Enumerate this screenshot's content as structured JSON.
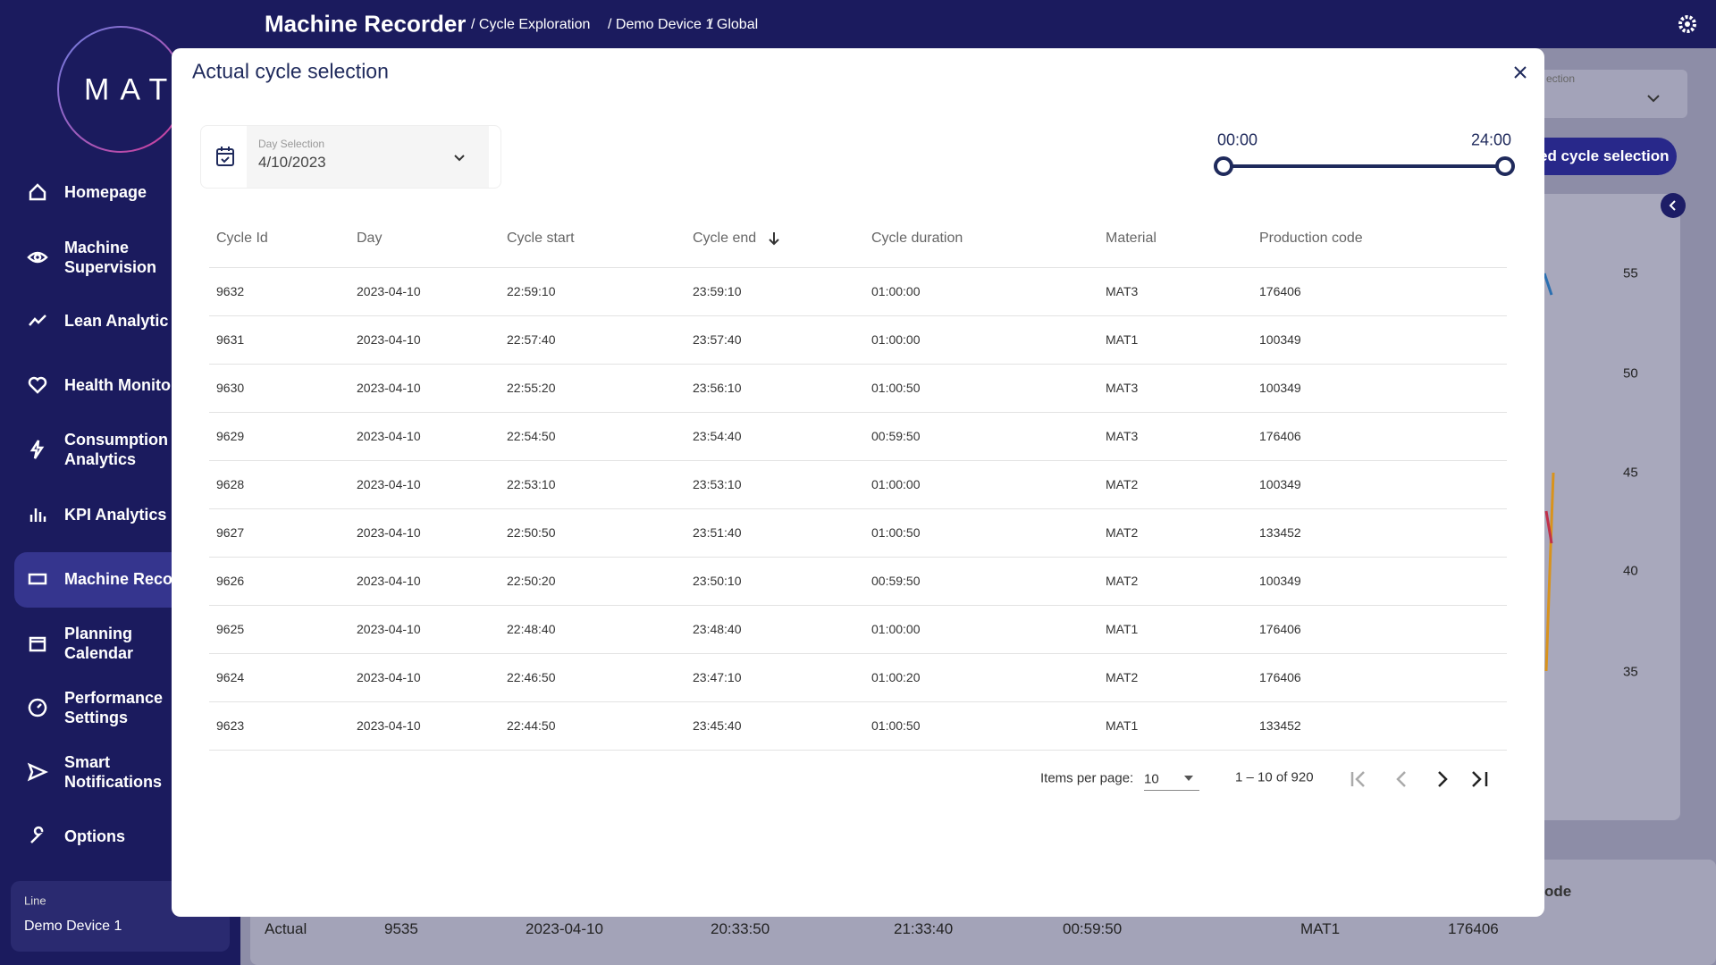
{
  "header": {
    "title": "Machine Recorder",
    "breadcrumbs": [
      "/ Cycle Exploration",
      "/ Demo Device 1",
      "/ Global"
    ]
  },
  "sidebar": {
    "logo": "MAT",
    "nav": [
      "Homepage",
      "Machine Supervision",
      "Lean Analytic",
      "Health Monito",
      "Consumption Analytics",
      "KPI Analytics",
      "Machine Reco",
      "Planning Calendar",
      "Performance Settings",
      "Smart Notifications",
      "Options"
    ],
    "line_label": "Line",
    "line_value": "Demo Device 1"
  },
  "background": {
    "select_label": "ection",
    "button": "ed cycle selection",
    "axis": [
      "55",
      "50",
      "45",
      "40",
      "35"
    ],
    "table_header": "ode",
    "row": [
      "Actual",
      "9535",
      "2023-04-10",
      "20:33:50",
      "21:33:40",
      "00:59:50",
      "MAT1",
      "176406"
    ]
  },
  "modal": {
    "title": "Actual cycle selection",
    "day_label": "Day Selection",
    "day_value": "4/10/2023",
    "slider": {
      "start": "00:00",
      "end": "24:00"
    },
    "table": {
      "columns": [
        "Cycle Id",
        "Day",
        "Cycle start",
        "Cycle end",
        "Cycle duration",
        "Material",
        "Production code"
      ],
      "rows": [
        [
          "9632",
          "2023-04-10",
          "22:59:10",
          "23:59:10",
          "01:00:00",
          "MAT3",
          "176406"
        ],
        [
          "9631",
          "2023-04-10",
          "22:57:40",
          "23:57:40",
          "01:00:00",
          "MAT1",
          "100349"
        ],
        [
          "9630",
          "2023-04-10",
          "22:55:20",
          "23:56:10",
          "01:00:50",
          "MAT3",
          "100349"
        ],
        [
          "9629",
          "2023-04-10",
          "22:54:50",
          "23:54:40",
          "00:59:50",
          "MAT3",
          "176406"
        ],
        [
          "9628",
          "2023-04-10",
          "22:53:10",
          "23:53:10",
          "01:00:00",
          "MAT2",
          "100349"
        ],
        [
          "9627",
          "2023-04-10",
          "22:50:50",
          "23:51:40",
          "01:00:50",
          "MAT2",
          "133452"
        ],
        [
          "9626",
          "2023-04-10",
          "22:50:20",
          "23:50:10",
          "00:59:50",
          "MAT2",
          "100349"
        ],
        [
          "9625",
          "2023-04-10",
          "22:48:40",
          "23:48:40",
          "01:00:00",
          "MAT1",
          "176406"
        ],
        [
          "9624",
          "2023-04-10",
          "22:46:50",
          "23:47:10",
          "01:00:20",
          "MAT2",
          "176406"
        ],
        [
          "9623",
          "2023-04-10",
          "22:44:50",
          "23:45:40",
          "01:00:50",
          "MAT1",
          "133452"
        ]
      ]
    },
    "paginator": {
      "items_label": "Items per page:",
      "page_size": "10",
      "range": "1 – 10 of 920"
    }
  }
}
